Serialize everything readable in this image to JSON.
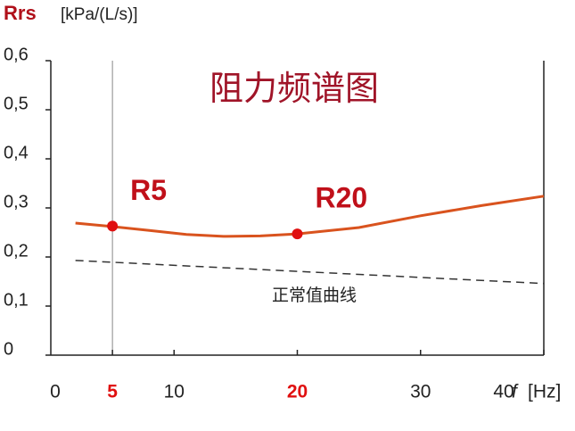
{
  "chart_data": {
    "type": "line",
    "title": "阻力频谱图",
    "y_label_var": "Rrs",
    "y_label_unit": "[kPa/(L/s)]",
    "x_label_var": "f",
    "x_label_unit": "[Hz]",
    "xlim": [
      0,
      40
    ],
    "ylim": [
      0,
      0.6
    ],
    "xticks": [
      0,
      5,
      10,
      20,
      30,
      40
    ],
    "yticks": [
      0,
      {
        "value": 0.1,
        "label": "0,1"
      },
      {
        "value": 0.2,
        "label": "0,2"
      },
      {
        "value": 0.3,
        "label": "0,3"
      },
      {
        "value": 0.4,
        "label": "0,4"
      },
      {
        "value": 0.5,
        "label": "0,5"
      },
      {
        "value": 0.6,
        "label": "0,6"
      }
    ],
    "grid": false,
    "series": [
      {
        "color": "#d9531e",
        "dashed": false,
        "x": [
          2,
          5,
          8,
          11,
          14,
          17,
          20,
          25,
          30,
          35,
          40
        ],
        "values": [
          0.269,
          0.262,
          0.254,
          0.246,
          0.242,
          0.243,
          0.247,
          0.26,
          0.284,
          0.305,
          0.324
        ]
      },
      {
        "name": "正常值曲线",
        "color": "#333333",
        "dashed": true,
        "x": [
          2,
          40
        ],
        "values": [
          0.193,
          0.146
        ]
      }
    ],
    "points": {
      "color": "#e01010",
      "labels": [
        "R5",
        "R20"
      ],
      "x": [
        5,
        20
      ],
      "values": [
        0.263,
        0.247
      ]
    }
  }
}
